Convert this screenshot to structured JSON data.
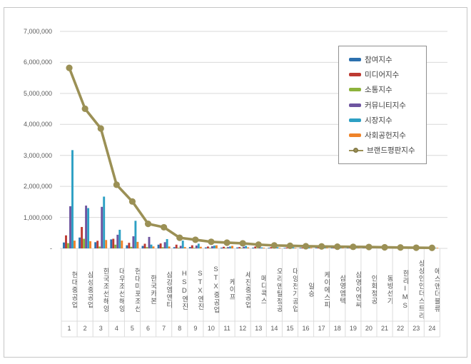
{
  "frame": {
    "border_color": "#c6c6c6",
    "background": "#ffffff"
  },
  "chart_data": {
    "type": "bar",
    "subtype": "grouped bars with overlay line",
    "title": "",
    "xlabel": "",
    "ylabel": "",
    "ylim": [
      0,
      7000000
    ],
    "grid": true,
    "legend_position": "top-right",
    "y_ticks": [
      "7,000,000",
      "6,000,000",
      "5,000,000",
      "4,000,000",
      "3,000,000",
      "2,000,000",
      "1,000,000",
      "-"
    ],
    "categories": [
      "현대중공업",
      "삼성중공업",
      "한국조선해양",
      "대우조선해양",
      "현대미포조선",
      "한국카본",
      "삼강엠앤티",
      "HSD엔진",
      "STX엔진",
      "STX중공업",
      "케이프",
      "세진중공업",
      "메디콕스",
      "오리엔탈정공",
      "대양전기공업",
      "일승",
      "케이에스피",
      "삼영엠텍",
      "삼영이엔씨",
      "인화정공",
      "동방선기",
      "한라IMS",
      "상상인인더스트리",
      "에스앤더블류"
    ],
    "ranks": [
      "1",
      "2",
      "3",
      "4",
      "5",
      "6",
      "7",
      "8",
      "9",
      "10",
      "11",
      "12",
      "13",
      "14",
      "15",
      "16",
      "17",
      "18",
      "19",
      "20",
      "21",
      "22",
      "23",
      "24"
    ],
    "series": [
      {
        "name": "참여지수",
        "type": "bar",
        "color": "#2c70ae",
        "values": [
          190000,
          350000,
          200000,
          290000,
          100000,
          80000,
          120000,
          40000,
          45000,
          30000,
          25000,
          30000,
          25000,
          20000,
          15000,
          15000,
          14000,
          10000,
          10000,
          8000,
          8000,
          6000,
          5000,
          4000
        ]
      },
      {
        "name": "미디어지수",
        "type": "bar",
        "color": "#bd3a32",
        "values": [
          420000,
          690000,
          245000,
          310000,
          180000,
          150000,
          160000,
          120000,
          100000,
          60000,
          52000,
          42000,
          60000,
          40000,
          30000,
          25000,
          28000,
          24000,
          20000,
          19000,
          14000,
          12000,
          9000,
          7000
        ]
      },
      {
        "name": "소통지수",
        "type": "bar",
        "color": "#8db33c",
        "values": [
          170000,
          310000,
          60000,
          120000,
          50000,
          40000,
          38000,
          22000,
          20000,
          15000,
          14000,
          10000,
          10000,
          9000,
          8000,
          7000,
          7000,
          5000,
          5000,
          4000,
          4000,
          3000,
          3000,
          2000
        ]
      },
      {
        "name": "커뮤니티지수",
        "type": "bar",
        "color": "#6e55a0",
        "values": [
          1360000,
          1380000,
          1340000,
          440000,
          390000,
          370000,
          200000,
          82000,
          92000,
          70000,
          42000,
          52000,
          40000,
          30000,
          26000,
          20000,
          24000,
          15000,
          14000,
          12000,
          10000,
          8000,
          6000,
          5000
        ]
      },
      {
        "name": "시장지수",
        "type": "bar",
        "color": "#2da0c4",
        "values": [
          3170000,
          1300000,
          1670000,
          600000,
          890000,
          122000,
          300000,
          250000,
          152000,
          92000,
          62000,
          80000,
          32000,
          40000,
          35000,
          30000,
          28000,
          25000,
          24000,
          20000,
          15000,
          12000,
          10000,
          8000
        ]
      },
      {
        "name": "사회공헌지수",
        "type": "bar",
        "color": "#ef8329",
        "values": [
          250000,
          230000,
          270000,
          250000,
          210000,
          62000,
          60000,
          42000,
          52000,
          100000,
          80000,
          32000,
          22000,
          20000,
          15000,
          11000,
          12000,
          10000,
          8000,
          8000,
          6000,
          5000,
          4000,
          3000
        ]
      },
      {
        "name": "브랜드평판지수",
        "type": "line",
        "color": "#9b9055",
        "values": [
          5823000,
          4505000,
          3868000,
          2052000,
          1512000,
          792000,
          681000,
          342000,
          278000,
          212000,
          185000,
          163000,
          121000,
          95000,
          84000,
          70000,
          63000,
          55000,
          50000,
          45000,
          35000,
          28000,
          22000,
          17000
        ]
      }
    ],
    "gridline_color": "#d9d9d9",
    "separator_color": "#dcdcdc"
  }
}
